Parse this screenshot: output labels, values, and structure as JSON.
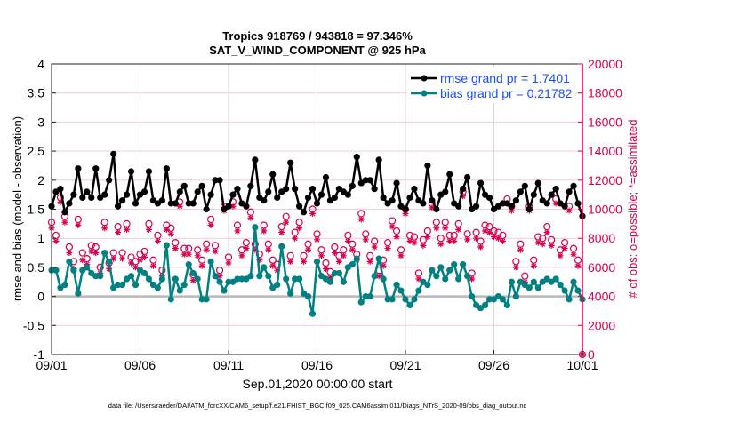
{
  "chart_data": {
    "type": "line",
    "title": "Tropics 918769 / 943818 = 97.346%",
    "subtitle": "SAT_V_WIND_COMPONENT @ 925 hPa",
    "xlabel": "Sep.01,2020 00:00:00 start",
    "ylabel": "rmse and bias (model - observation)",
    "ylabel_right": "# of obs: o=possible; *=assimilated",
    "footer": "data file: /Users/raeder/DAI/ATM_forcXX/CAM6_setup/f.e21.FHIST_BGC.f09_025.CAM6assim.011/Diags_NTrS_2020-09/obs_diag_output.nc",
    "xlim_days": [
      0,
      30
    ],
    "x_step_days": 0.25,
    "ylim": [
      -1,
      4
    ],
    "ylim_right": [
      0,
      20000
    ],
    "x_ticks": [
      {
        "day": 0,
        "label": "09/01"
      },
      {
        "day": 5,
        "label": "09/06"
      },
      {
        "day": 10,
        "label": "09/11"
      },
      {
        "day": 15,
        "label": "09/16"
      },
      {
        "day": 20,
        "label": "09/21"
      },
      {
        "day": 25,
        "label": "09/26"
      },
      {
        "day": 30,
        "label": "10/01"
      }
    ],
    "y_ticks": [
      {
        "v": -1,
        "label": "-1"
      },
      {
        "v": -0.5,
        "label": "-0.5"
      },
      {
        "v": 0,
        "label": "0"
      },
      {
        "v": 0.5,
        "label": "0.5"
      },
      {
        "v": 1,
        "label": "1"
      },
      {
        "v": 1.5,
        "label": "1.5"
      },
      {
        "v": 2,
        "label": "2"
      },
      {
        "v": 2.5,
        "label": "2.5"
      },
      {
        "v": 3,
        "label": "3"
      },
      {
        "v": 3.5,
        "label": "3.5"
      },
      {
        "v": 4,
        "label": "4"
      }
    ],
    "y_ticks_right": [
      {
        "v": 0,
        "label": "0"
      },
      {
        "v": 2000,
        "label": "2000"
      },
      {
        "v": 4000,
        "label": "4000"
      },
      {
        "v": 6000,
        "label": "6000"
      },
      {
        "v": 8000,
        "label": "8000"
      },
      {
        "v": 10000,
        "label": "10000"
      },
      {
        "v": 12000,
        "label": "12000"
      },
      {
        "v": 14000,
        "label": "14000"
      },
      {
        "v": 16000,
        "label": "16000"
      },
      {
        "v": 18000,
        "label": "18000"
      },
      {
        "v": 20000,
        "label": "20000"
      }
    ],
    "legend": {
      "placement": "top-right",
      "entries": [
        {
          "label": "rmse grand pr = 1.7401",
          "color": "#000000"
        },
        {
          "label": "bias grand pr = 0.21782",
          "color": "#008080"
        }
      ]
    },
    "colors": {
      "rmse": "#000000",
      "bias": "#008080",
      "obs": "#d6004f",
      "grid": "#d9d9d9",
      "hgrid": "#f4c9d9",
      "zero": "#b8b8b8",
      "label_text": "#1a4cff"
    },
    "series": [
      {
        "name": "rmse",
        "values": [
          1.55,
          1.8,
          1.85,
          1.45,
          1.6,
          1.75,
          2.2,
          1.7,
          1.8,
          1.7,
          2.2,
          1.7,
          1.75,
          2.0,
          2.45,
          1.55,
          1.65,
          1.75,
          2.15,
          1.6,
          1.75,
          1.8,
          2.15,
          1.65,
          1.6,
          1.65,
          2.2,
          1.6,
          1.6,
          1.8,
          1.9,
          1.6,
          1.6,
          1.8,
          1.9,
          1.5,
          1.75,
          2.0,
          2.0,
          1.5,
          1.55,
          1.75,
          1.85,
          1.6,
          1.55,
          1.9,
          2.35,
          1.7,
          1.65,
          1.8,
          2.1,
          1.7,
          1.8,
          1.85,
          2.3,
          1.85,
          1.55,
          1.45,
          1.7,
          1.85,
          1.6,
          1.75,
          2.05,
          1.65,
          1.7,
          1.85,
          1.8,
          1.75,
          1.9,
          2.4,
          1.95,
          2.0,
          2.0,
          1.85,
          2.35,
          1.7,
          1.6,
          1.65,
          1.95,
          1.55,
          1.5,
          1.7,
          1.85,
          1.65,
          1.6,
          2.25,
          1.65,
          1.5,
          1.75,
          1.8,
          2.1,
          1.6,
          1.55,
          1.85,
          2.05,
          1.5,
          1.55,
          1.95,
          1.75,
          1.7,
          1.5,
          1.55,
          1.6,
          1.6,
          1.55,
          1.65,
          1.8,
          1.9,
          1.5,
          1.75,
          1.95,
          1.65,
          1.6,
          1.75,
          1.85,
          1.6,
          1.55,
          1.8,
          1.9,
          1.6,
          1.38
        ]
      },
      {
        "name": "bias",
        "values": [
          0.45,
          0.45,
          0.15,
          0.2,
          0.6,
          0.45,
          0.05,
          0.45,
          0.5,
          0.4,
          0.35,
          0.35,
          0.75,
          0.6,
          0.15,
          0.2,
          0.2,
          0.3,
          0.35,
          0.2,
          0.45,
          0.4,
          0.3,
          0.2,
          0.15,
          0.3,
          0.88,
          -0.05,
          0.3,
          0.1,
          0.2,
          0.55,
          0.4,
          0.3,
          -0.05,
          -0.05,
          0.6,
          0.35,
          0.25,
          0.1,
          0.25,
          0.25,
          0.3,
          0.3,
          0.3,
          0.35,
          1.19,
          0.35,
          0.5,
          0.35,
          0.15,
          0.2,
          0.86,
          0.3,
          0.05,
          0.3,
          0.3,
          0.05,
          0.0,
          -0.3,
          0.6,
          0.35,
          0.3,
          0.25,
          0.4,
          0.4,
          0.25,
          0.5,
          0.55,
          0.65,
          -0.1,
          0.0,
          0.0,
          0.35,
          0.65,
          0.3,
          -0.05,
          -0.05,
          0.2,
          0.1,
          -0.05,
          -0.15,
          -0.05,
          0.1,
          0.25,
          0.2,
          0.45,
          0.35,
          0.5,
          0.3,
          0.45,
          0.55,
          0.3,
          0.55,
          0.35,
          0.0,
          -0.15,
          -0.2,
          -0.15,
          -0.05,
          -0.05,
          0.0,
          -0.05,
          -0.15,
          0.25,
          0.0,
          0.25,
          0.2,
          0.15,
          0.25,
          0.15,
          0.25,
          0.3,
          0.25,
          0.3,
          0.2,
          0.1,
          -0.05,
          0.25,
          0.1,
          -0.05
        ]
      },
      {
        "name": "obs_possible",
        "axis": "right",
        "values": [
          9100,
          8200,
          10800,
          9500,
          7400,
          6400,
          9300,
          7000,
          6600,
          7500,
          7400,
          6000,
          9100,
          6300,
          7000,
          8800,
          7000,
          9000,
          6700,
          6400,
          6900,
          7100,
          9000,
          6500,
          8200,
          5800,
          8900,
          8700,
          7700,
          10500,
          7300,
          7300,
          5500,
          7200,
          6500,
          7600,
          9300,
          7500,
          5800,
          10200,
          6700,
          10500,
          8900,
          7200,
          7700,
          9800,
          7600,
          6900,
          8900,
          7600,
          6500,
          6200,
          8800,
          9500,
          6800,
          8400,
          9100,
          6800,
          7600,
          10000,
          8300,
          7200,
          6300,
          5700,
          7400,
          6800,
          7200,
          8200,
          7600,
          6900,
          9700,
          8300,
          6800,
          7800,
          5800,
          6500,
          7700,
          9200,
          8500,
          7200,
          10000,
          8200,
          8100,
          5600,
          7900,
          8500,
          10400,
          9100,
          8000,
          9100,
          8200,
          8200,
          9000,
          11200,
          8300,
          5600,
          8400,
          7800,
          8900,
          8800,
          8500,
          8400,
          8200,
          10700,
          10200,
          6400,
          7600,
          5400,
          10200,
          6500,
          8100,
          8000,
          8800,
          7900,
          10700,
          7200,
          7700,
          10200,
          7300,
          6500,
          0
        ]
      },
      {
        "name": "obs_assimilated",
        "axis": "right",
        "values": [
          8700,
          7800,
          10500,
          9100,
          7000,
          5900,
          8900,
          6500,
          6200,
          7100,
          7000,
          5600,
          8700,
          5900,
          6600,
          8400,
          6600,
          8600,
          6300,
          6000,
          6500,
          6700,
          8600,
          6100,
          7800,
          5400,
          8600,
          8300,
          7300,
          10200,
          6900,
          6900,
          5100,
          6800,
          6100,
          7200,
          8900,
          7100,
          5400,
          9900,
          6300,
          10200,
          8500,
          6800,
          7300,
          9400,
          7200,
          6500,
          8500,
          7200,
          6100,
          5800,
          8400,
          9100,
          6400,
          8000,
          8700,
          6400,
          7200,
          9700,
          7900,
          6800,
          5900,
          5300,
          7000,
          6400,
          6800,
          7800,
          7200,
          6500,
          9300,
          7900,
          6400,
          7400,
          5400,
          6100,
          7300,
          8800,
          8100,
          6800,
          9700,
          7800,
          7700,
          5200,
          7500,
          8100,
          10100,
          8700,
          7600,
          8700,
          7800,
          7800,
          8600,
          10900,
          7900,
          5200,
          8000,
          7400,
          8500,
          8400,
          8100,
          8000,
          7800,
          10400,
          9900,
          6000,
          7200,
          5000,
          9900,
          6100,
          7700,
          7600,
          8400,
          7500,
          10400,
          6800,
          7300,
          9900,
          6900,
          6100,
          0
        ]
      }
    ]
  }
}
